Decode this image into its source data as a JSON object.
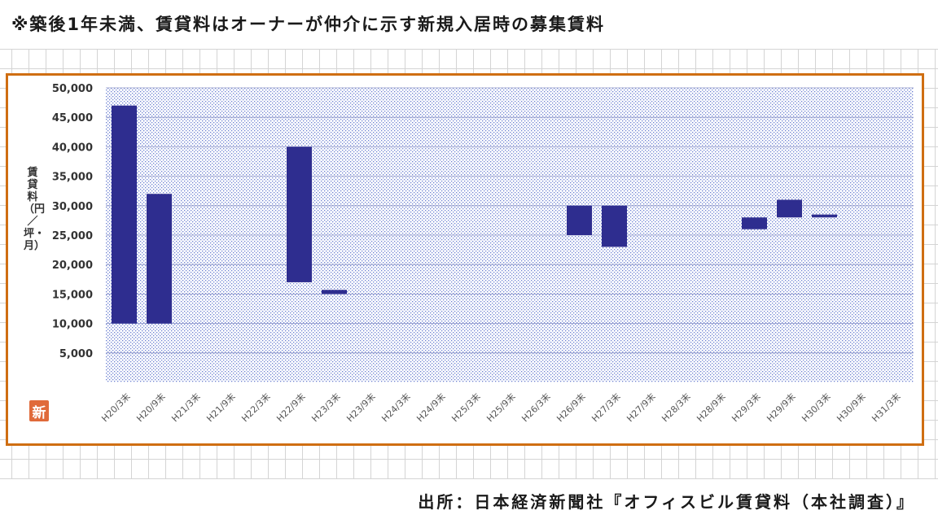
{
  "note": "※築後1年未満、賃貸料はオーナーが仲介に示す新規入居時の募集賃料",
  "source": "出所：日本経済新聞社『オフィスビル賃貸料（本社調査）』",
  "badge": "新",
  "colors": {
    "bar": "#2e2d8f",
    "frame": "#cf6e12",
    "dots": "#6b7fd1",
    "badge": "#e06a3a"
  },
  "chart_data": {
    "type": "bar",
    "subtype": "floating-range",
    "ylabel": "賃貸料（円／坪・月）",
    "xlabel": "",
    "ylim": [
      0,
      50000
    ],
    "yticks": [
      5000,
      10000,
      15000,
      20000,
      25000,
      30000,
      35000,
      40000,
      45000,
      50000
    ],
    "ytick_labels": [
      "5,000",
      "10,000",
      "15,000",
      "20,000",
      "25,000",
      "30,000",
      "35,000",
      "40,000",
      "45,000",
      "50,000"
    ],
    "grid": true,
    "categories": [
      "H20/3末",
      "H20/9末",
      "H21/3末",
      "H21/9末",
      "H22/3末",
      "H22/9末",
      "H23/3末",
      "H23/9末",
      "H24/3末",
      "H24/9末",
      "H25/3末",
      "H25/9末",
      "H26/3末",
      "H26/9末",
      "H27/3末",
      "H27/9末",
      "H28/3末",
      "H28/9末",
      "H29/3末",
      "H29/9末",
      "H30/3末",
      "H30/9末",
      "H31/3末"
    ],
    "ranges": [
      [
        10000,
        47000
      ],
      [
        10000,
        32000
      ],
      null,
      null,
      null,
      [
        17000,
        40000
      ],
      [
        15000,
        15700
      ],
      null,
      null,
      null,
      null,
      null,
      null,
      [
        25000,
        30000
      ],
      [
        23000,
        30000
      ],
      null,
      null,
      null,
      [
        26000,
        28000
      ],
      [
        28000,
        31000
      ],
      [
        28000,
        28500
      ],
      null,
      null
    ]
  }
}
